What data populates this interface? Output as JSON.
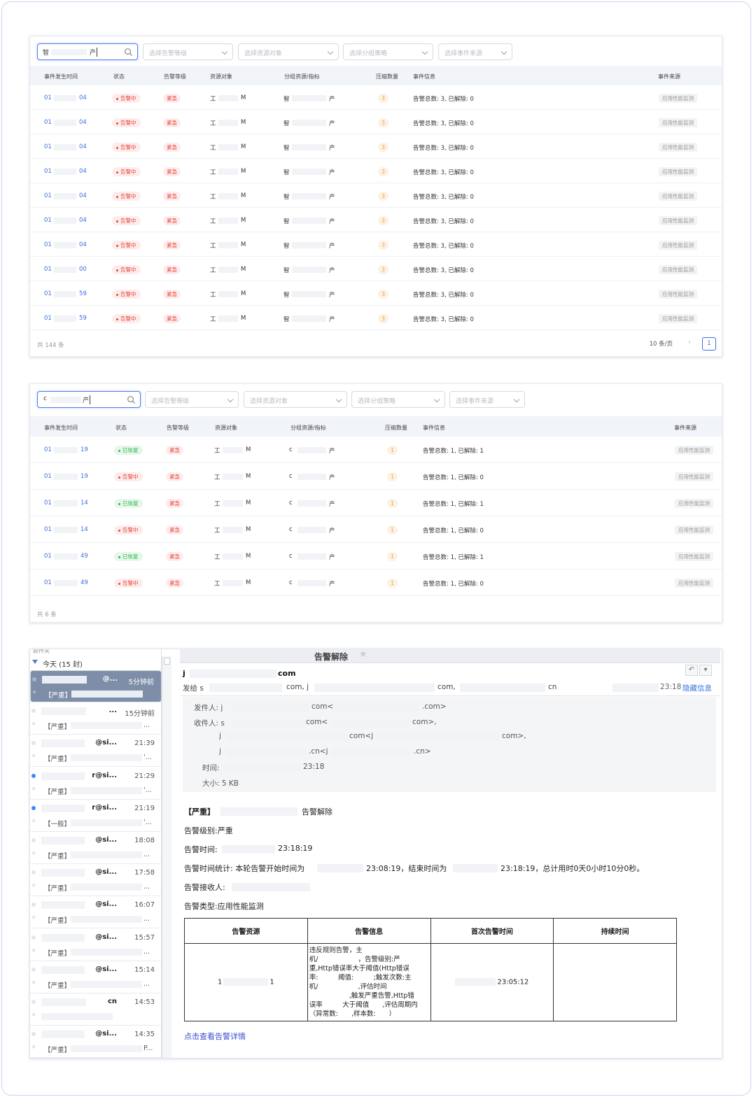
{
  "panel1": {
    "search_value_a": "智",
    "search_value_b": "产",
    "filters": [
      "选择告警等级",
      "选择资源对象",
      "选择分组策略",
      "选择事件来源"
    ],
    "headers": [
      "事件发生时间",
      "状态",
      "告警等级",
      "资源对象",
      "分组资源/指标",
      "压缩数量",
      "事件信息",
      "事件来源"
    ],
    "rows": [
      {
        "t1": "01",
        "t2": "04",
        "status": "告警中",
        "level": "紧急",
        "res_a": "工",
        "res_b": "M",
        "grp_a": "智",
        "grp_b": "产",
        "count": "3",
        "info": "告警总数: 3, 已解除: 0",
        "source": "应用性能监测"
      },
      {
        "t1": "01",
        "t2": "04",
        "status": "告警中",
        "level": "紧急",
        "res_a": "工",
        "res_b": "M",
        "grp_a": "智",
        "grp_b": "产",
        "count": "3",
        "info": "告警总数: 3, 已解除: 0",
        "source": "应用性能监测"
      },
      {
        "t1": "01",
        "t2": "04",
        "status": "告警中",
        "level": "紧急",
        "res_a": "工",
        "res_b": "M",
        "grp_a": "智",
        "grp_b": "产",
        "count": "3",
        "info": "告警总数: 3, 已解除: 0",
        "source": "应用性能监测"
      },
      {
        "t1": "01",
        "t2": "04",
        "status": "告警中",
        "level": "紧急",
        "res_a": "工",
        "res_b": "M",
        "grp_a": "智",
        "grp_b": "产",
        "count": "3",
        "info": "告警总数: 3, 已解除: 0",
        "source": "应用性能监测"
      },
      {
        "t1": "01",
        "t2": "04",
        "status": "告警中",
        "level": "紧急",
        "res_a": "工",
        "res_b": "M",
        "grp_a": "智",
        "grp_b": "产",
        "count": "3",
        "info": "告警总数: 3, 已解除: 0",
        "source": "应用性能监测"
      },
      {
        "t1": "01",
        "t2": "04",
        "status": "告警中",
        "level": "紧急",
        "res_a": "工",
        "res_b": "M",
        "grp_a": "智",
        "grp_b": "产",
        "count": "3",
        "info": "告警总数: 3, 已解除: 0",
        "source": "应用性能监测"
      },
      {
        "t1": "01",
        "t2": "04",
        "status": "告警中",
        "level": "紧急",
        "res_a": "工",
        "res_b": "M",
        "grp_a": "智",
        "grp_b": "产",
        "count": "3",
        "info": "告警总数: 3, 已解除: 0",
        "source": "应用性能监测"
      },
      {
        "t1": "01",
        "t2": "00",
        "status": "告警中",
        "level": "紧急",
        "res_a": "工",
        "res_b": "M",
        "grp_a": "智",
        "grp_b": "产",
        "count": "3",
        "info": "告警总数: 3, 已解除: 0",
        "source": "应用性能监测"
      },
      {
        "t1": "01",
        "t2": "59",
        "status": "告警中",
        "level": "紧急",
        "res_a": "工",
        "res_b": "M",
        "grp_a": "智",
        "grp_b": "产",
        "count": "3",
        "info": "告警总数: 3, 已解除: 0",
        "source": "应用性能监测"
      },
      {
        "t1": "01",
        "t2": "59",
        "status": "告警中",
        "level": "紧急",
        "res_a": "工",
        "res_b": "M",
        "grp_a": "智",
        "grp_b": "产",
        "count": "3",
        "info": "告警总数: 3, 已解除: 0",
        "source": "应用性能监测"
      }
    ],
    "total": "共 144 条",
    "page_size": "10 条/页",
    "page_current": "1"
  },
  "panel2": {
    "search_value_a": "c",
    "search_value_b": "产",
    "filters": [
      "选择告警等级",
      "选择资源对象",
      "选择分组策略",
      "选择事件来源"
    ],
    "headers": [
      "事件发生时间",
      "状态",
      "告警等级",
      "资源对象",
      "分组资源/指标",
      "压缩数量",
      "事件信息",
      "事件来源"
    ],
    "rows": [
      {
        "t1": "01",
        "t2": "19",
        "status": "已恢复",
        "ok": true,
        "level": "紧急",
        "res_a": "工",
        "res_b": "M",
        "grp_a": "c",
        "grp_b": "产",
        "count": "1",
        "info": "告警总数: 1, 已解除: 1",
        "source": "应用性能监测"
      },
      {
        "t1": "01",
        "t2": "19",
        "status": "告警中",
        "ok": false,
        "level": "紧急",
        "res_a": "工",
        "res_b": "M",
        "grp_a": "c",
        "grp_b": "产",
        "count": "1",
        "info": "告警总数: 1, 已解除: 0",
        "source": "应用性能监测"
      },
      {
        "t1": "01",
        "t2": "14",
        "status": "已恢复",
        "ok": true,
        "level": "紧急",
        "res_a": "工",
        "res_b": "M",
        "grp_a": "c",
        "grp_b": "产",
        "count": "1",
        "info": "告警总数: 1, 已解除: 1",
        "source": "应用性能监测"
      },
      {
        "t1": "01",
        "t2": "14",
        "status": "告警中",
        "ok": false,
        "level": "紧急",
        "res_a": "工",
        "res_b": "M",
        "grp_a": "c",
        "grp_b": "产",
        "count": "1",
        "info": "告警总数: 1, 已解除: 0",
        "source": "应用性能监测"
      },
      {
        "t1": "01",
        "t2": "49",
        "status": "已恢复",
        "ok": true,
        "level": "紧急",
        "res_a": "工",
        "res_b": "M",
        "grp_a": "c",
        "grp_b": "产",
        "count": "1",
        "info": "告警总数: 1, 已解除: 1",
        "source": "应用性能监测"
      },
      {
        "t1": "01",
        "t2": "49",
        "status": "告警中",
        "ok": false,
        "level": "紧急",
        "res_a": "工",
        "res_b": "M",
        "grp_a": "c",
        "grp_b": "产",
        "count": "1",
        "info": "告警总数: 1, 已解除: 0",
        "source": "应用性能监测"
      }
    ],
    "total": "共 6 条"
  },
  "mail": {
    "list_top": "邮件夹",
    "group_label": "今天 (15 封)",
    "items": [
      {
        "sender": "@...",
        "time": "5分钟前",
        "tag": "【严重】",
        "tail": "",
        "unread": false,
        "selected": true
      },
      {
        "sender": "...",
        "time": "15分钟前",
        "tag": "【严重】",
        "tail": "...",
        "unread": false
      },
      {
        "sender": "@si...",
        "time": "21:39",
        "tag": "【严重】",
        "tail": "'...",
        "unread": false
      },
      {
        "sender": "r@si...",
        "time": "21:29",
        "tag": "【严重】",
        "tail": "'...",
        "unread": true
      },
      {
        "sender": "r@si...",
        "time": "21:19",
        "tag": "【一般】",
        "tail": "'...",
        "unread": true
      },
      {
        "sender": "@si...",
        "time": "18:08",
        "tag": "【严重】",
        "tail": "...",
        "unread": false
      },
      {
        "sender": "@si...",
        "time": "17:58",
        "tag": "【严重】",
        "tail": "...",
        "unread": false
      },
      {
        "sender": "@si...",
        "time": "16:07",
        "tag": "【严重】",
        "tail": "...",
        "unread": false
      },
      {
        "sender": "@si...",
        "time": "15:57",
        "tag": "【严重】",
        "tail": "...",
        "unread": false
      },
      {
        "sender": "@si...",
        "time": "15:14",
        "tag": "【严重】",
        "tail": "...",
        "unread": false
      },
      {
        "sender": "cn",
        "time": "14:53",
        "tag": "",
        "tail": "",
        "unread": false
      },
      {
        "sender": "@si...",
        "time": "14:35",
        "tag": "【严重】",
        "tail": "P...",
        "unread": false
      }
    ],
    "subject": "告警解除",
    "from_a": "j",
    "from_b": "com",
    "to_prefix": "发给 s",
    "to_b": "com, j",
    "to_c": "com,",
    "to_d": "cn",
    "header_time": "23:18",
    "hide_info": "隐藏信息",
    "info": {
      "from_label": "发件人: j",
      "from_b": "com<",
      "from_c": ".com>",
      "to_label": "收件人: s",
      "to_b": "com<",
      "to_c": "com>,",
      "r2a": "j",
      "r2b": "com<j",
      "r2c": "com>,",
      "r3a": "j",
      "r3b": ".cn<j",
      "r3c": ".cn>",
      "time_label": "时间:",
      "time_val": "23:18",
      "size": "大小: 5 KB"
    },
    "body": {
      "l1_tag": "【严重】",
      "l1_text": "告警解除",
      "l2": "告警级别:严重",
      "l3_label": "告警时间:",
      "l3_val": "23:18:19",
      "l4_a": "告警时间统计: 本轮告警开始时间为",
      "l4_b": "23:08:19，结束时间为",
      "l4_c": "23:18:19，总计用时0天0小时10分0秒。",
      "l5": "告警接收人:",
      "l6": "告警类型:应用性能监测"
    },
    "table": {
      "headers": [
        "告警资源",
        "告警信息",
        "首次告警时间",
        "持续时间"
      ],
      "res_a": "1",
      "res_b": "1",
      "info_lines": [
        "违反规则告警，主",
        "机/　　　　　　，告警级别:严",
        "重,Http错误率大于阈值(Http错误",
        "率:　　　阈值:　　　;触发次数:主",
        "机/　　　　　　,评估时间",
        "　　　　　　,触发严重告警,Http错",
        "误率　　　大于阈值　　,评估周期内",
        "（异常数:　　,样本数:　　）"
      ],
      "first_time": "23:05:12",
      "duration": ""
    },
    "detail_link": "点击查看告警详情"
  }
}
